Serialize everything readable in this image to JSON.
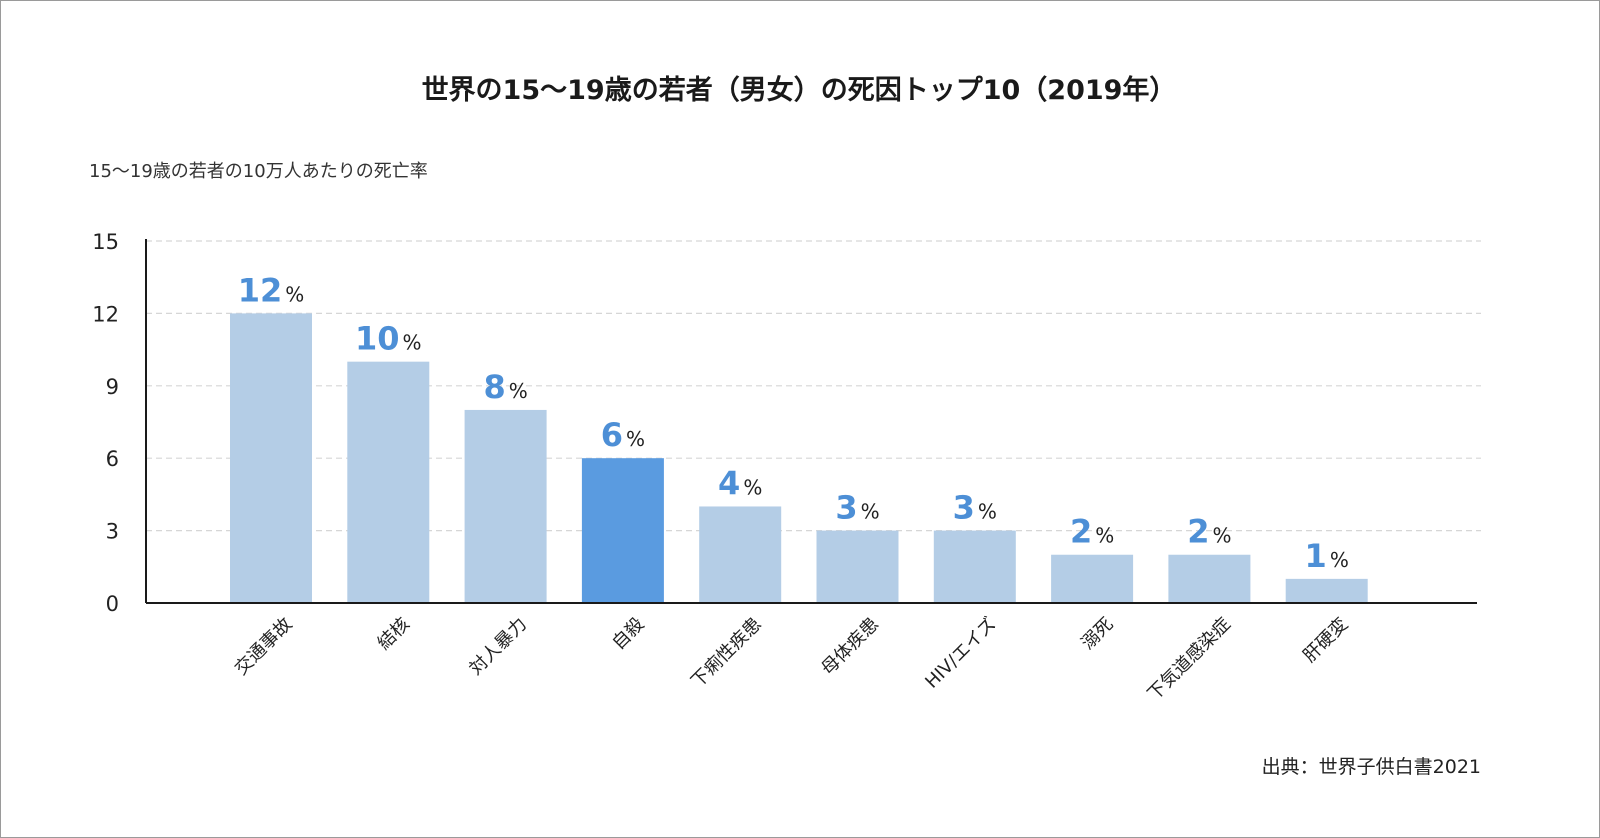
{
  "chart_data": {
    "type": "bar",
    "title": "世界の15〜19歳の若者（男女）の死因トップ10（2019年）",
    "ylabel": "15〜19歳の若者の10万人あたりの死亡率",
    "xlabel": "",
    "ylim": [
      0,
      15
    ],
    "yticks": [
      "0",
      "3",
      "6",
      "9",
      "12",
      "15"
    ],
    "grid": true,
    "categories": [
      "交通事故",
      "結核",
      "対人暴力",
      "自殺",
      "下痢性疾患",
      "母体疾患",
      "HIV/エイズ",
      "溺死",
      "下気道感染症",
      "肝硬変"
    ],
    "values": [
      12,
      10,
      8,
      6,
      4,
      3,
      3,
      2,
      2,
      1
    ],
    "value_unit": "%",
    "highlight_index": 3,
    "source": "出典：世界子供白書2021"
  },
  "colors": {
    "bar": "#b4cde6",
    "bar_highlight": "#5a9be0",
    "label": "#4d8fd6",
    "grid": "#d6d6d6",
    "axis": "#1a1a1a"
  }
}
